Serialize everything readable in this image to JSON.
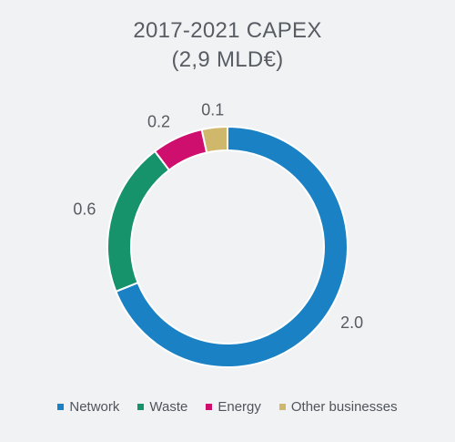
{
  "chart_data": {
    "type": "pie",
    "donut": true,
    "title": "2017-2021 CAPEX",
    "subtitle": "(2,9 MLD€)",
    "series": [
      {
        "name": "Network",
        "value": 2.0,
        "label": "2.0",
        "color": "#1a82c4"
      },
      {
        "name": "Waste",
        "value": 0.6,
        "label": "0.6",
        "color": "#17936b"
      },
      {
        "name": "Energy",
        "value": 0.2,
        "label": "0.2",
        "color": "#cf0f6e"
      },
      {
        "name": "Other businesses",
        "value": 0.1,
        "label": "0.1",
        "color": "#cfb86c"
      }
    ],
    "legend_position": "bottom"
  }
}
